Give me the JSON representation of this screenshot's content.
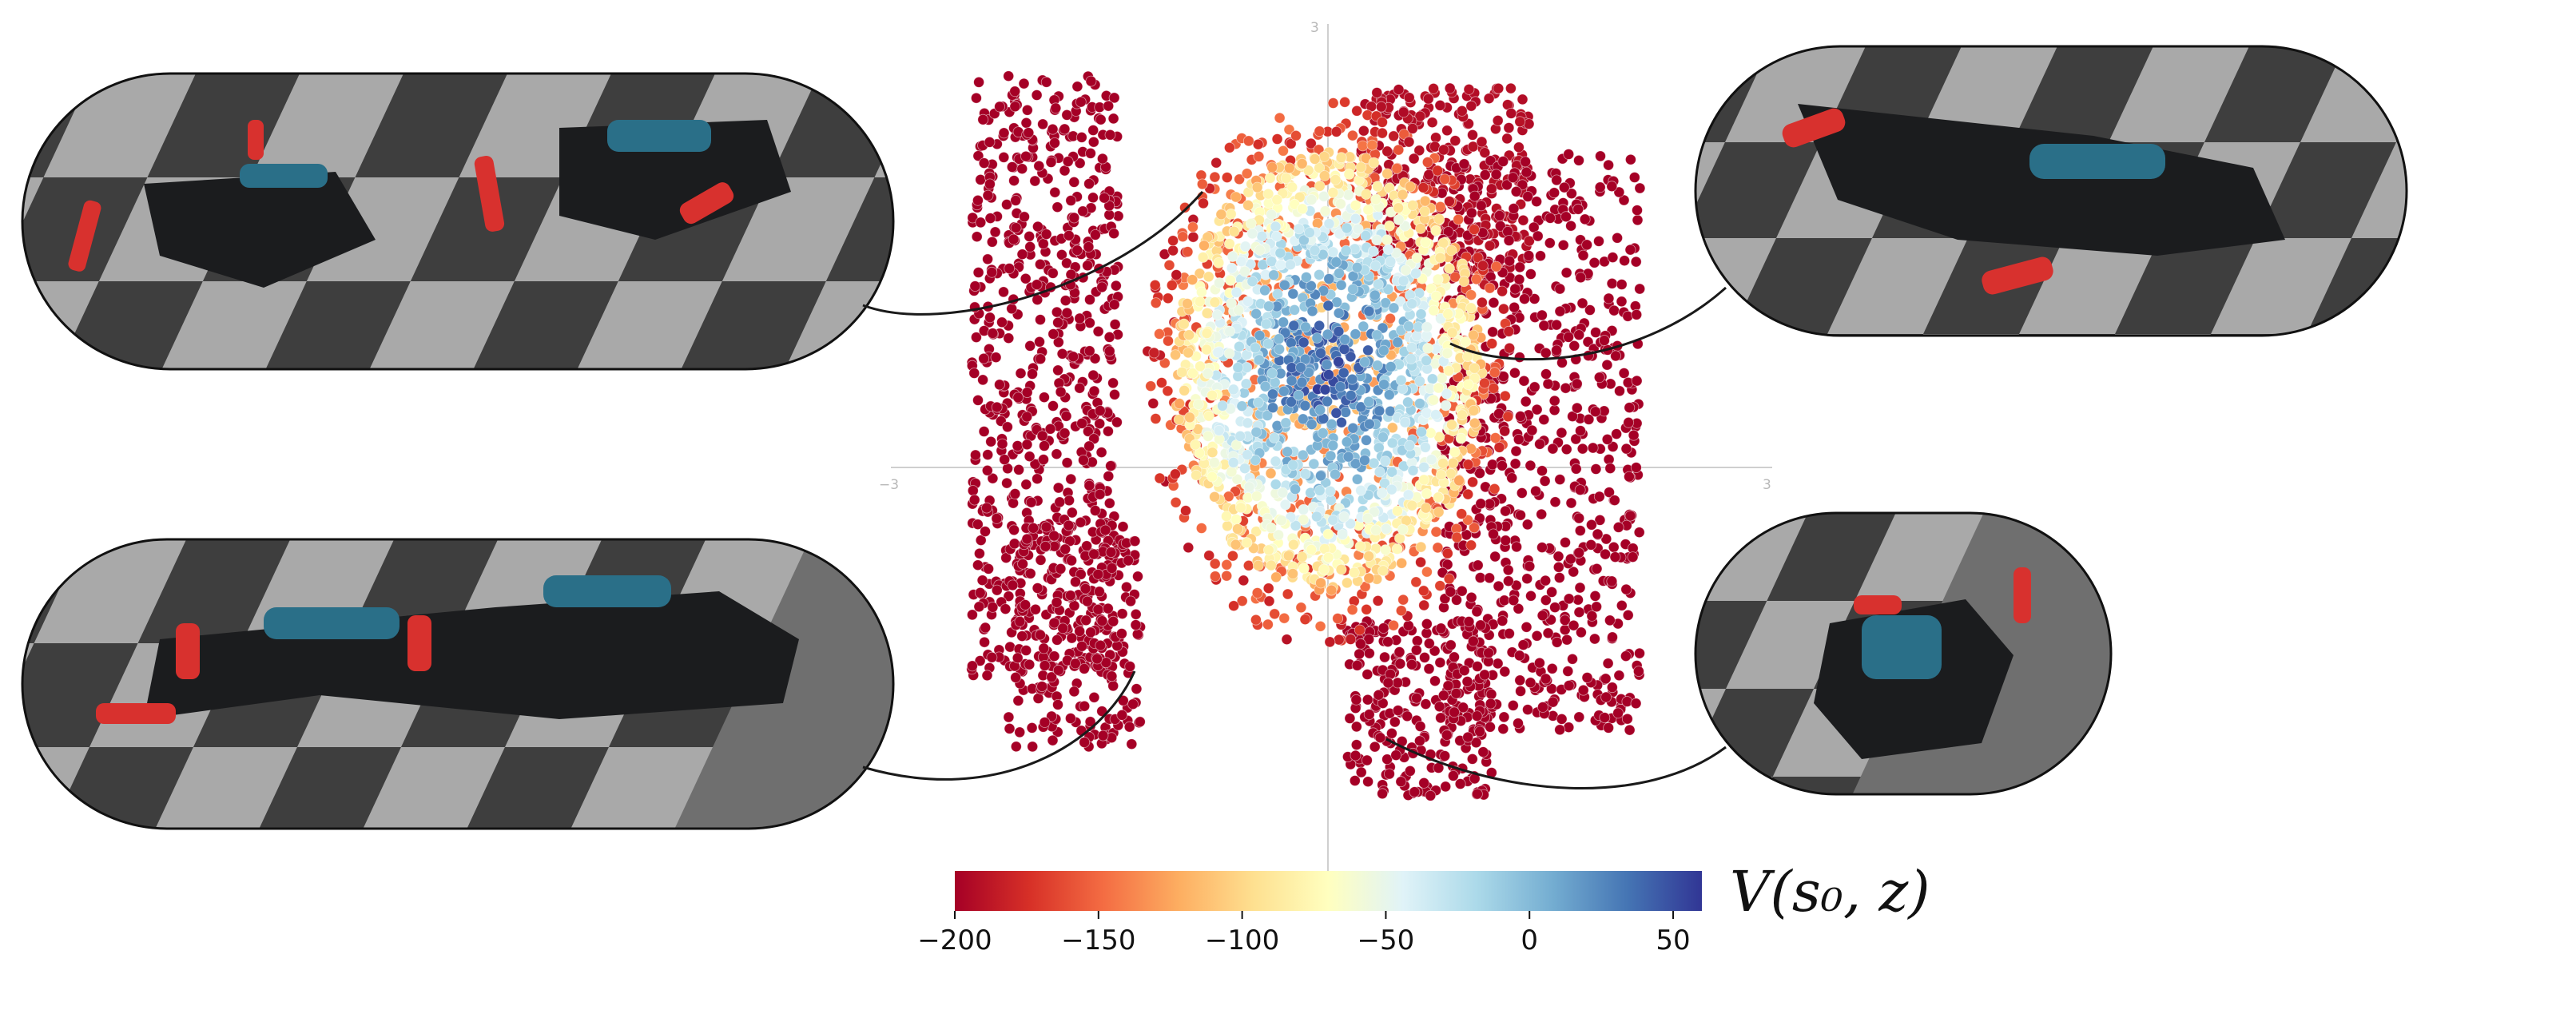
{
  "chart_data": {
    "type": "scatter",
    "title": "",
    "xlabel": "",
    "ylabel": "",
    "xlim": [
      -3,
      3
    ],
    "ylim": [
      -3,
      3
    ],
    "axis_ticks": {
      "x_min": "−3",
      "x_max": "3",
      "y_max": "3"
    },
    "color_variable": "value",
    "value_range": [
      -200,
      60
    ],
    "clusters": [
      {
        "name_hint": "high-value core",
        "cx": -0.02,
        "cy": 0.55,
        "rx": 1.05,
        "ry": 1.55,
        "v_center": 40,
        "v_edge": -110,
        "count": 1500
      },
      {
        "name_hint": "rim",
        "cx": -0.02,
        "cy": 0.55,
        "rx": 1.25,
        "ry": 1.95,
        "v_center": -120,
        "v_edge": -175,
        "count": 700
      }
    ],
    "outer_bands": [
      {
        "x_range": [
          -2.45,
          -1.45
        ],
        "y_range": [
          -1.6,
          2.65
        ],
        "v": -200,
        "count": 650
      },
      {
        "x_range": [
          -2.2,
          -1.3
        ],
        "y_range": [
          -2.1,
          -0.5
        ],
        "v": -200,
        "count": 250
      },
      {
        "x_range": [
          0.2,
          1.35
        ],
        "y_range": [
          1.2,
          2.55
        ],
        "v": -190,
        "count": 300
      },
      {
        "x_range": [
          0.75,
          2.1
        ],
        "y_range": [
          -2.0,
          2.1
        ],
        "v": -200,
        "count": 700
      },
      {
        "x_range": [
          0.1,
          1.1
        ],
        "y_range": [
          -2.45,
          -1.2
        ],
        "v": -200,
        "count": 250
      }
    ],
    "colorbar": {
      "label": "V(s₀, z)",
      "min": -200,
      "max": 60,
      "ticks": [
        {
          "value": -200,
          "label": "−200"
        },
        {
          "value": -150,
          "label": "−150"
        },
        {
          "value": -100,
          "label": "−100"
        },
        {
          "value": -50,
          "label": "−50"
        },
        {
          "value": 0,
          "label": "0"
        },
        {
          "value": 50,
          "label": "50"
        }
      ],
      "colors": [
        "#a50026",
        "#d73027",
        "#f46d43",
        "#fdae61",
        "#fee090",
        "#ffffbf",
        "#e0f3f8",
        "#abd9e9",
        "#74add1",
        "#4575b4",
        "#313695"
      ]
    }
  },
  "photos": [
    {
      "id": "top-left",
      "content": "quadruped robot walking forward, motion blur"
    },
    {
      "id": "bottom-left",
      "content": "quadruped robot crouched low, stretched gait"
    },
    {
      "id": "top-right",
      "content": "quadruped robot lying on its side"
    },
    {
      "id": "bottom-right",
      "content": "quadruped robot flipped upside down"
    }
  ],
  "colors": {
    "frame": "#111111",
    "robot_red": "#d8312e",
    "robot_shell": "#2a6f88"
  }
}
